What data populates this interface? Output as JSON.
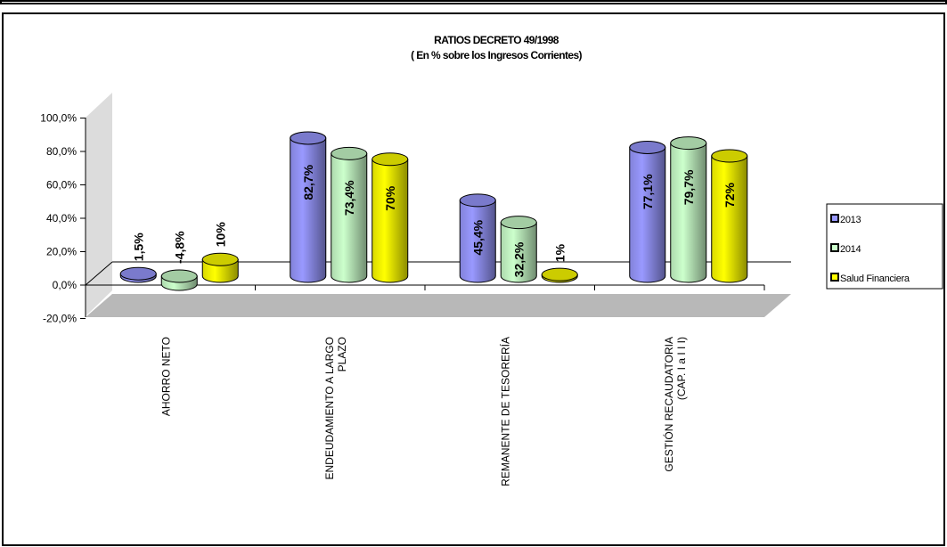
{
  "chart_data": {
    "type": "bar",
    "title": "RATIOS DECRETO 49/1998",
    "subtitle": "( En % sobre los Ingresos Corrientes)",
    "categories": [
      [
        "AHORRO NETO"
      ],
      [
        "ENDEUDAMIENTO A LARGO",
        "PLAZO"
      ],
      [
        "REMANENTE DE TESORERÍA"
      ],
      [
        "GESTIÓN RECAUDATORIA",
        "(CAP. I a I I I)"
      ]
    ],
    "series": [
      {
        "name": "2013",
        "color": "#9999ff",
        "values": [
          1.5,
          82.7,
          45.4,
          77.1
        ],
        "labels": [
          "1,5%",
          "82,7%",
          "45,4%",
          "77,1%"
        ]
      },
      {
        "name": "2014",
        "color": "#ccffcc",
        "values": [
          -4.8,
          73.4,
          32.2,
          79.7
        ],
        "labels": [
          "-4,8%",
          "73,4%",
          "32,2%",
          "79,7%"
        ]
      },
      {
        "name": "Salud Financiera",
        "color": "#ffff00",
        "values": [
          10,
          70,
          1,
          72
        ],
        "labels": [
          "10%",
          "70%",
          "1%",
          "72%"
        ]
      }
    ],
    "y_ticks": [
      {
        "value": 100,
        "label": "100,0%"
      },
      {
        "value": 80,
        "label": "80,0%"
      },
      {
        "value": 60,
        "label": "60,0%"
      },
      {
        "value": 40,
        "label": "40,0%"
      },
      {
        "value": 20,
        "label": "20,0%"
      },
      {
        "value": 0,
        "label": "0,0%"
      },
      {
        "value": -20,
        "label": "-20,0%"
      }
    ],
    "ylim": [
      -20,
      100
    ],
    "legend_position": "right",
    "grid": false,
    "style": "3d-cylinder"
  }
}
